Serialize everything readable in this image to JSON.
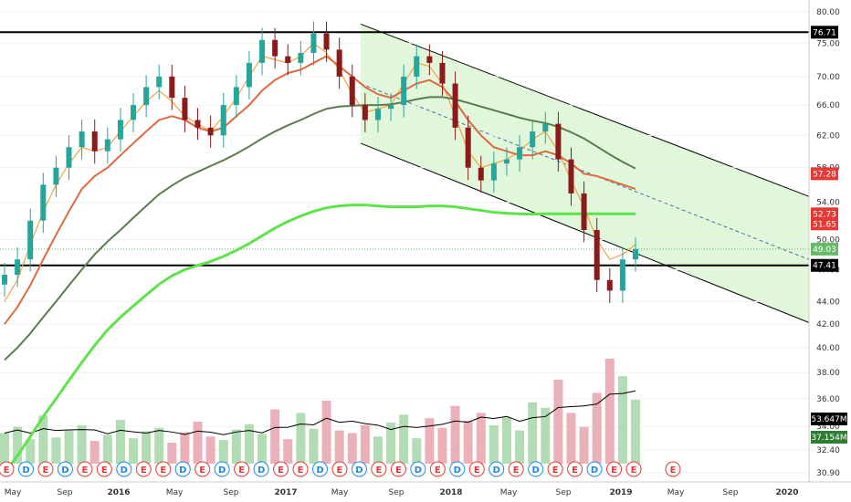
{
  "chart_data": {
    "type": "candlestick",
    "y_axis": {
      "ticks": [
        80.0,
        75.0,
        70.0,
        66.0,
        62.0,
        58.0,
        54.0,
        50.0,
        47.0,
        44.0,
        42.0,
        40.0,
        38.0,
        36.0,
        34.0,
        32.4,
        30.9
      ],
      "scale": "log"
    },
    "x_axis": {
      "ticks": [
        "May",
        "Sep",
        "2016",
        "May",
        "Sep",
        "2017",
        "May",
        "Sep",
        "2018",
        "May",
        "Sep",
        "2019",
        "May",
        "Sep",
        "2020"
      ]
    },
    "horizontal_lines": [
      {
        "label": "76.71",
        "value": 76.71
      },
      {
        "label": "47.41",
        "value": 47.41
      }
    ],
    "price_badges": [
      {
        "label": "76.71",
        "value": 76.71,
        "color": "#000000",
        "text": "#ffffff"
      },
      {
        "label": "57.28",
        "value": 57.28,
        "color": "#e53935",
        "text": "#ffffff"
      },
      {
        "label": "52.73",
        "value": 52.73,
        "color": "#e53935",
        "text": "#ffffff"
      },
      {
        "label": "51.65",
        "value": 51.65,
        "color": "#e53935",
        "text": "#ffffff"
      },
      {
        "label": "49.03",
        "value": 49.03,
        "color": "#66bb6a",
        "text": "#ffffff"
      },
      {
        "label": "47.41",
        "value": 47.41,
        "color": "#000000",
        "text": "#ffffff"
      }
    ],
    "volume_badges": [
      {
        "label": "53.647M",
        "color": "#000000",
        "text": "#ffffff"
      },
      {
        "label": "37.154M",
        "color": "#2e7d32",
        "text": "#ffffff"
      }
    ],
    "channel": {
      "upper": {
        "start": 78.0,
        "end": 54.5
      },
      "lower": {
        "start": 61.0,
        "end": 42.0
      },
      "fill": "#e0f7da"
    },
    "close_series": [
      46.5,
      48.0,
      52.0,
      56.0,
      58.0,
      60.5,
      62.5,
      60.0,
      61.5,
      64.0,
      66.0,
      68.5,
      70.0,
      67.0,
      64.0,
      63.0,
      62.0,
      66.0,
      68.5,
      72.0,
      75.5,
      73.0,
      72.0,
      73.5,
      76.5,
      74.0,
      70.0,
      66.0,
      64.0,
      65.5,
      66.0,
      70.0,
      73.0,
      72.0,
      69.0,
      63.0,
      58.0,
      56.5,
      58.5,
      59.0,
      60.5,
      62.5,
      63.5,
      59.0,
      55.0,
      51.0,
      46.0,
      45.0,
      48.0,
      49.03
    ],
    "moving_averages": [
      {
        "series": [
          44.0,
          46.0,
          49.5,
          53.0,
          56.0,
          58.5,
          60.5,
          60.0,
          60.5,
          62.5,
          64.5,
          66.5,
          68.0,
          66.5,
          64.5,
          63.5,
          62.5,
          64.5,
          67.0,
          70.0,
          73.0,
          72.5,
          72.0,
          73.0,
          75.0,
          73.5,
          71.0,
          67.5,
          65.0,
          65.5,
          66.0,
          69.0,
          72.0,
          71.5,
          69.0,
          64.5,
          60.0,
          58.0,
          58.5,
          59.0,
          60.0,
          61.5,
          62.5,
          60.0,
          56.5,
          53.5,
          50.0,
          48.0,
          48.5,
          49.5
        ],
        "color": "#c98bd6",
        "width": 1
      },
      {
        "series": [
          44.0,
          46.0,
          49.5,
          53.0,
          56.0,
          58.5,
          60.5,
          60.0,
          60.5,
          62.5,
          64.5,
          66.5,
          68.0,
          66.5,
          64.5,
          63.5,
          62.5,
          64.5,
          67.0,
          70.0,
          73.0,
          72.5,
          72.0,
          73.0,
          75.0,
          73.5,
          71.0,
          67.5,
          65.0,
          65.5,
          66.0,
          69.0,
          72.0,
          71.5,
          69.0,
          64.5,
          60.0,
          58.0,
          58.5,
          59.0,
          60.0,
          61.5,
          62.5,
          60.0,
          56.5,
          53.5,
          50.0,
          48.0,
          48.5,
          49.5
        ],
        "color": "#f5a623",
        "width": 1
      },
      {
        "series": [
          42.0,
          43.5,
          45.5,
          48.0,
          50.5,
          53.0,
          55.5,
          57.0,
          58.0,
          59.5,
          61.0,
          62.5,
          64.0,
          64.5,
          64.0,
          63.0,
          62.5,
          63.0,
          64.5,
          66.0,
          68.0,
          69.5,
          70.5,
          71.0,
          72.0,
          73.0,
          71.5,
          70.0,
          68.5,
          67.5,
          67.0,
          68.0,
          69.0,
          69.5,
          68.5,
          66.5,
          64.0,
          62.0,
          60.5,
          60.0,
          59.5,
          59.5,
          60.0,
          59.5,
          58.5,
          57.28,
          57.0,
          56.5,
          56.0,
          55.5
        ],
        "color": "#e0693e",
        "width": 2
      },
      {
        "series": [
          39.0,
          40.0,
          41.2,
          42.6,
          44.0,
          45.5,
          47.0,
          48.5,
          49.8,
          51.0,
          52.3,
          53.6,
          54.9,
          55.9,
          56.8,
          57.5,
          58.2,
          58.9,
          59.7,
          60.6,
          61.6,
          62.5,
          63.3,
          64.0,
          64.8,
          65.5,
          65.8,
          65.9,
          66.0,
          66.0,
          66.1,
          66.4,
          66.8,
          67.1,
          67.1,
          66.8,
          66.3,
          65.8,
          65.3,
          64.8,
          64.3,
          63.9,
          63.6,
          63.1,
          62.4,
          61.6,
          60.6,
          59.6,
          58.7,
          57.9
        ],
        "color": "#5b7d4e",
        "width": 2
      },
      {
        "series": [
          30.9,
          32.0,
          33.3,
          34.7,
          36.0,
          37.4,
          38.8,
          40.2,
          41.5,
          42.6,
          43.6,
          44.6,
          45.6,
          46.4,
          47.0,
          47.4,
          47.8,
          48.3,
          48.9,
          49.6,
          50.4,
          51.2,
          51.9,
          52.5,
          53.0,
          53.4,
          53.6,
          53.7,
          53.7,
          53.6,
          53.5,
          53.5,
          53.5,
          53.6,
          53.6,
          53.5,
          53.3,
          53.1,
          52.9,
          52.8,
          52.73,
          52.7,
          52.73,
          52.73,
          52.73,
          52.73,
          52.73,
          52.73,
          52.73,
          52.73
        ],
        "color": "#5ee34a",
        "width": 3
      }
    ],
    "volume": [
      35,
      42,
      28,
      55,
      30,
      38,
      44,
      26,
      33,
      50,
      29,
      37,
      41,
      24,
      36,
      48,
      31,
      27,
      39,
      45,
      34,
      62,
      28,
      58,
      40,
      72,
      38,
      35,
      44,
      31,
      47,
      56,
      29,
      52,
      41,
      66,
      49,
      58,
      44,
      53,
      38,
      70,
      64,
      96,
      58,
      42,
      81,
      120,
      100,
      73
    ]
  },
  "event_markers": [
    "E",
    "D",
    "E",
    "D",
    "E",
    "E",
    "D",
    "E",
    "E",
    "D",
    "E",
    "D",
    "E",
    "D",
    "E",
    "E",
    "D",
    "E",
    "D",
    "E",
    "E",
    "D",
    "E",
    "D",
    "E",
    "D",
    "E",
    "D",
    "E",
    "E",
    "D",
    "E",
    "E"
  ],
  "future_event_marker": "E"
}
